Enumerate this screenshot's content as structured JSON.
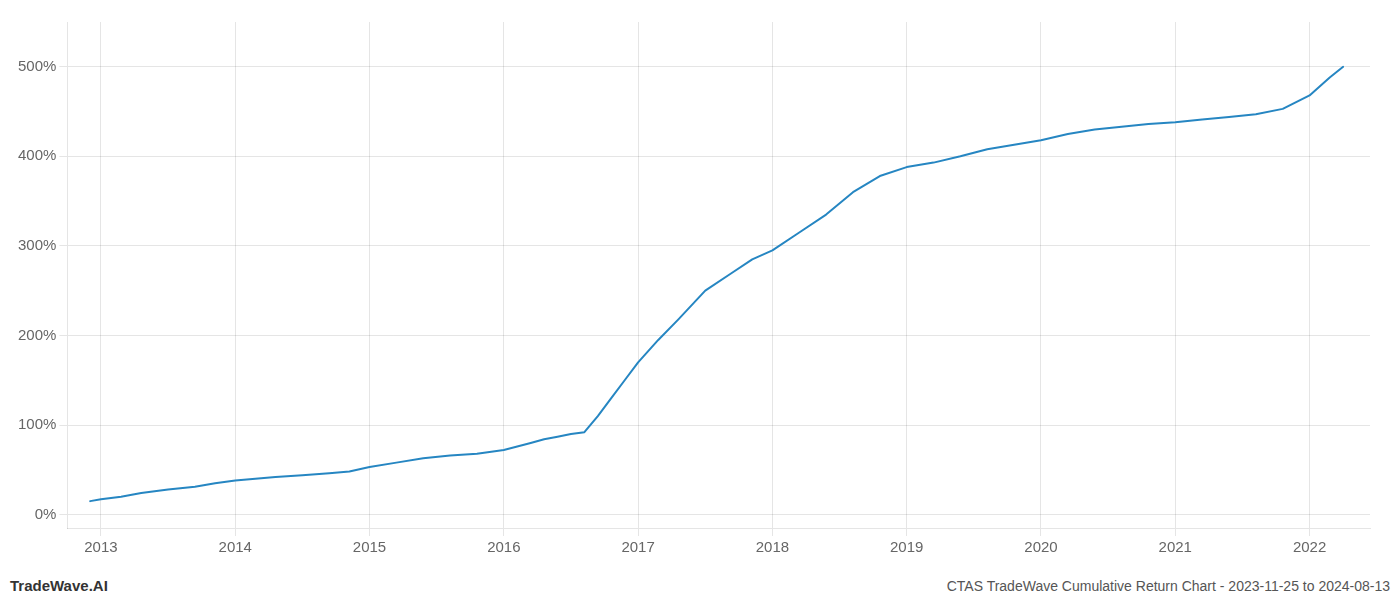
{
  "chart_data": {
    "type": "line",
    "title": "CTAS TradeWave Cumulative Return Chart - 2023-11-25 to 2024-08-13",
    "annotations": [
      {
        "text": "TradeWave.AI"
      }
    ],
    "color": "#2686c2",
    "grid": true,
    "x": [
      2012.92,
      2013.0,
      2013.15,
      2013.3,
      2013.5,
      2013.7,
      2013.85,
      2014.0,
      2014.15,
      2014.3,
      2014.5,
      2014.7,
      2014.85,
      2015.0,
      2015.2,
      2015.4,
      2015.6,
      2015.8,
      2016.0,
      2016.1,
      2016.2,
      2016.3,
      2016.4,
      2016.5,
      2016.6,
      2016.7,
      2016.8,
      2016.9,
      2017.0,
      2017.15,
      2017.3,
      2017.5,
      2017.7,
      2017.85,
      2018.0,
      2018.2,
      2018.4,
      2018.6,
      2018.8,
      2019.0,
      2019.2,
      2019.4,
      2019.6,
      2019.8,
      2020.0,
      2020.2,
      2020.4,
      2020.6,
      2020.8,
      2021.0,
      2021.2,
      2021.4,
      2021.6,
      2021.8,
      2022.0,
      2022.15,
      2022.25
    ],
    "values": [
      15,
      17,
      20,
      24,
      28,
      31,
      35,
      38,
      40,
      42,
      44,
      46,
      48,
      53,
      58,
      63,
      66,
      68,
      72,
      76,
      80,
      84,
      87,
      90,
      92,
      110,
      130,
      150,
      170,
      195,
      218,
      250,
      270,
      285,
      295,
      315,
      335,
      360,
      378,
      388,
      393,
      400,
      408,
      413,
      418,
      425,
      430,
      433,
      436,
      438,
      441,
      444,
      447,
      453,
      468,
      488,
      500
    ],
    "xlim": [
      2012.75,
      2022.45
    ],
    "xticks": [
      2013,
      2014,
      2015,
      2016,
      2017,
      2018,
      2019,
      2020,
      2021,
      2022
    ],
    "ylim": [
      -15,
      550
    ],
    "yticks": [
      {
        "value": 0,
        "label": "0%"
      },
      {
        "value": 100,
        "label": "100%"
      },
      {
        "value": 200,
        "label": "200%"
      },
      {
        "value": 300,
        "label": "300%"
      },
      {
        "value": 400,
        "label": "400%"
      },
      {
        "value": 500,
        "label": "500%"
      }
    ]
  }
}
